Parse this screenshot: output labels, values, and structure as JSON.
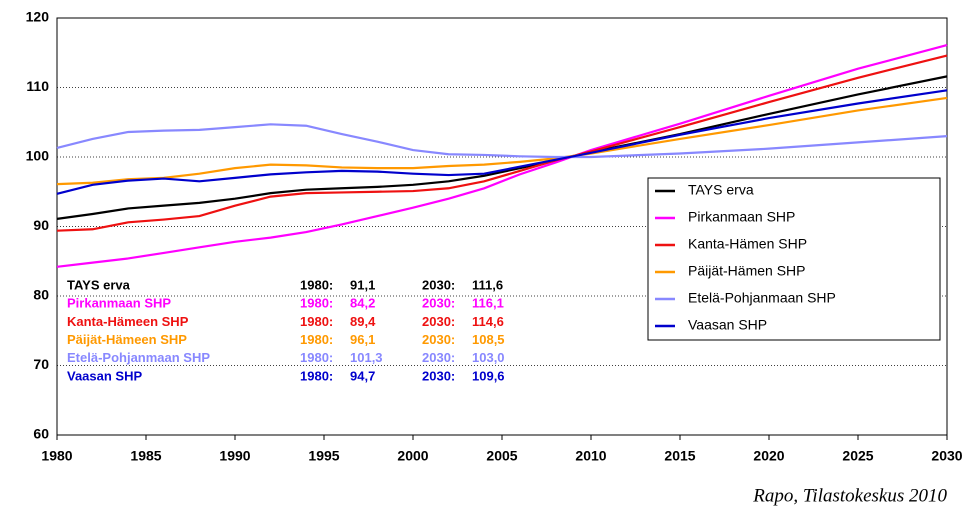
{
  "chart_data": {
    "type": "line",
    "x": [
      1980,
      1982,
      1984,
      1986,
      1988,
      1990,
      1992,
      1994,
      1996,
      1998,
      2000,
      2002,
      2004,
      2006,
      2008,
      2010,
      2015,
      2020,
      2025,
      2030
    ],
    "series": [
      {
        "name": "TAYS erva",
        "color": "#000000",
        "values": [
          91.1,
          91.8,
          92.6,
          93.0,
          93.4,
          94.0,
          94.8,
          95.3,
          95.5,
          95.7,
          96.0,
          96.5,
          97.3,
          98.4,
          99.5,
          100.7,
          103.3,
          106.2,
          109.0,
          111.6
        ]
      },
      {
        "name": "Pirkanmaan SHP",
        "color": "#ff00ff",
        "values": [
          84.2,
          84.8,
          85.4,
          86.2,
          87.0,
          87.8,
          88.4,
          89.2,
          90.3,
          91.5,
          92.7,
          94.0,
          95.5,
          97.5,
          99.2,
          101.0,
          104.8,
          108.8,
          112.7,
          116.1
        ]
      },
      {
        "name": "Kanta-Hämen SHP",
        "color": "#ee1111",
        "values": [
          89.4,
          89.6,
          90.6,
          91.0,
          91.5,
          93.0,
          94.3,
          94.8,
          94.9,
          95.0,
          95.1,
          95.5,
          96.5,
          98.0,
          99.5,
          100.8,
          104.3,
          107.9,
          111.4,
          114.6
        ]
      },
      {
        "name": "Päijät-Hämen SHP",
        "color": "#ff9900",
        "values": [
          96.1,
          96.3,
          96.8,
          97.0,
          97.6,
          98.4,
          98.9,
          98.8,
          98.5,
          98.4,
          98.4,
          98.7,
          98.9,
          99.3,
          99.8,
          100.5,
          102.6,
          104.6,
          106.7,
          108.5
        ]
      },
      {
        "name": "Etelä-Pohjanmaan SHP",
        "color": "#8888ff",
        "values": [
          101.3,
          102.6,
          103.6,
          103.8,
          103.9,
          104.3,
          104.7,
          104.5,
          103.3,
          102.2,
          101.0,
          100.4,
          100.3,
          100.1,
          100.0,
          100.0,
          100.5,
          101.2,
          102.1,
          103.0
        ]
      },
      {
        "name": "Vaasan SHP",
        "color": "#0000cc",
        "values": [
          94.7,
          96.0,
          96.6,
          96.9,
          96.5,
          97.0,
          97.5,
          97.8,
          98.0,
          97.9,
          97.6,
          97.4,
          97.6,
          98.6,
          99.6,
          100.6,
          103.2,
          105.6,
          107.7,
          109.6
        ]
      }
    ],
    "xlim": [
      1980,
      2030
    ],
    "xticks": [
      1980,
      1985,
      1990,
      1995,
      2000,
      2005,
      2010,
      2015,
      2020,
      2025,
      2030
    ],
    "ylim": [
      60,
      120
    ],
    "yticks": [
      60,
      70,
      80,
      90,
      100,
      110,
      120
    ],
    "grid": true,
    "legend": "right",
    "annotations": [
      {
        "color": "#000000",
        "cells": [
          "TAYS erva",
          "1980:",
          "91,1",
          "2030:",
          "111,6"
        ]
      },
      {
        "color": "#ff00ff",
        "cells": [
          "Pirkanmaan SHP",
          "1980:",
          "84,2",
          "2030:",
          "116,1"
        ]
      },
      {
        "color": "#ee1111",
        "cells": [
          "Kanta-Hämeen SHP",
          "1980:",
          "89,4",
          "2030:",
          "114,6"
        ]
      },
      {
        "color": "#ff9900",
        "cells": [
          "Päijät-Hämeen SHP",
          "1980:",
          "96,1",
          "2030:",
          "108,5"
        ]
      },
      {
        "color": "#8888ff",
        "cells": [
          "Etelä-Pohjanmaan SHP",
          "1980:",
          "101,3",
          "2030:",
          "103,0"
        ]
      },
      {
        "color": "#0000cc",
        "cells": [
          "Vaasan SHP",
          "1980:",
          "94,7",
          "2030:",
          "109,6"
        ]
      }
    ],
    "source": "Rapo, Tilastokeskus 2010"
  }
}
